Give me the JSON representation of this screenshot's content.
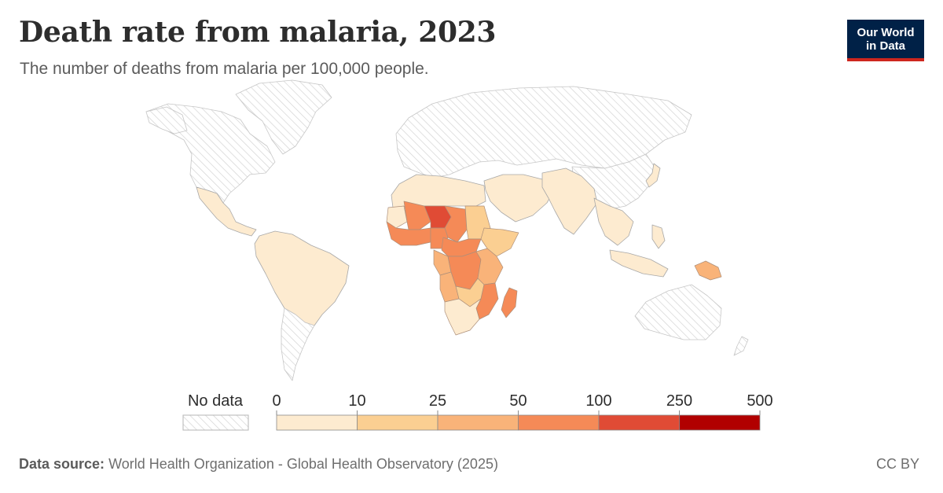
{
  "header": {
    "title": "Death rate from malaria, 2023",
    "subtitle": "The number of deaths from malaria per 100,000 people."
  },
  "logo": {
    "line1": "Our World",
    "line2": "in Data",
    "bg_color": "#002147",
    "accent_color": "#ce261e"
  },
  "map_data": {
    "type": "choropleth",
    "year": 2023,
    "no_data_label": "No data",
    "bins": [
      {
        "from": 0,
        "to": 10,
        "color": "#fdebd0"
      },
      {
        "from": 10,
        "to": 25,
        "color": "#fbcf92"
      },
      {
        "from": 25,
        "to": 50,
        "color": "#f9b379"
      },
      {
        "from": 50,
        "to": 100,
        "color": "#f58a57"
      },
      {
        "from": 100,
        "to": 250,
        "color": "#e04b35"
      },
      {
        "from": 250,
        "to": 500,
        "color": "#b10000"
      }
    ],
    "tick_labels": [
      "0",
      "10",
      "25",
      "50",
      "100",
      "250",
      "500"
    ]
  },
  "footer": {
    "source_label": "Data source:",
    "source_text": "World Health Organization - Global Health Observatory (2025)",
    "license": "CC BY"
  }
}
